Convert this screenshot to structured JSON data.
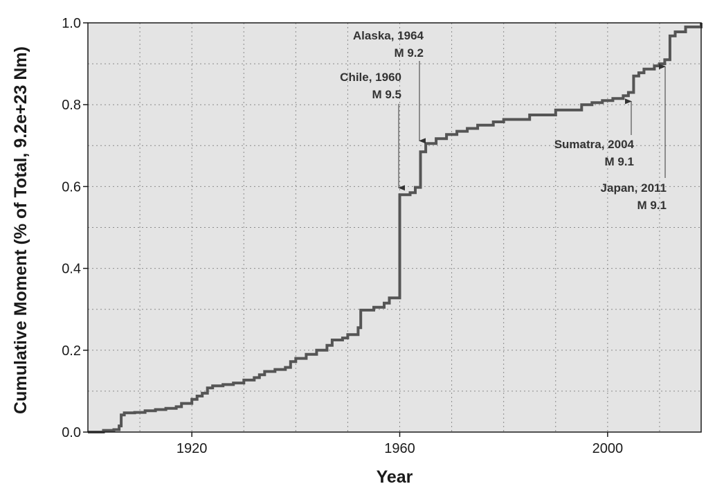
{
  "chart_data": {
    "type": "line",
    "step": true,
    "xlabel": "Year",
    "ylabel": "Cumulative Moment (% of Total, 9.2e+23 Nm)",
    "xlim": [
      1900,
      2018
    ],
    "ylim": [
      0,
      1.0
    ],
    "x_ticks": [
      1920,
      1960,
      2000
    ],
    "x_tick_labels": [
      "1920",
      "1960",
      "2000"
    ],
    "y_ticks": [
      0.0,
      0.2,
      0.4,
      0.6,
      0.8,
      1.0
    ],
    "y_tick_labels": [
      "0.0",
      "0.2",
      "0.4",
      "0.6",
      "0.8",
      "1.0"
    ],
    "grid": true,
    "colors": {
      "background": "#e4e4e4",
      "line": "#555555",
      "axes": "#1a1a1a"
    },
    "series": [
      {
        "x": [
          1900,
          1903,
          1905,
          1906,
          1906.4,
          1907,
          1909,
          1911,
          1913,
          1915,
          1917,
          1918,
          1920,
          1921,
          1922,
          1923,
          1924,
          1926,
          1928,
          1930,
          1932,
          1933,
          1934,
          1936,
          1938,
          1939,
          1940,
          1942,
          1944,
          1946,
          1947,
          1949,
          1950,
          1952,
          1952.5,
          1955,
          1957,
          1958,
          1960,
          1962,
          1963,
          1964,
          1965,
          1967,
          1969,
          1971,
          1973,
          1975,
          1978,
          1980,
          1985,
          1990,
          1995,
          1997,
          1999,
          2001,
          2003,
          2004,
          2005,
          2006,
          2007,
          2009,
          2010,
          2011,
          2012,
          2013,
          2015,
          2018
        ],
        "y": [
          0.0,
          0.004,
          0.006,
          0.015,
          0.042,
          0.047,
          0.048,
          0.052,
          0.055,
          0.058,
          0.062,
          0.07,
          0.08,
          0.088,
          0.095,
          0.108,
          0.113,
          0.116,
          0.12,
          0.127,
          0.133,
          0.14,
          0.148,
          0.153,
          0.158,
          0.172,
          0.18,
          0.19,
          0.2,
          0.212,
          0.225,
          0.23,
          0.238,
          0.255,
          0.298,
          0.305,
          0.315,
          0.328,
          0.58,
          0.585,
          0.598,
          0.685,
          0.705,
          0.717,
          0.727,
          0.735,
          0.742,
          0.75,
          0.758,
          0.764,
          0.775,
          0.787,
          0.8,
          0.805,
          0.81,
          0.815,
          0.822,
          0.83,
          0.87,
          0.878,
          0.887,
          0.895,
          0.9,
          0.91,
          0.968,
          0.978,
          0.99,
          1.0
        ]
      }
    ],
    "annotations": [
      {
        "line1": "Alaska, 1964",
        "line2": "M 9.2",
        "x": 1964,
        "y": 0.705
      },
      {
        "line1": "Chile, 1960",
        "line2": "M 9.5",
        "x": 1960,
        "y": 0.59
      },
      {
        "line1": "Sumatra, 2004",
        "line2": "M 9.1",
        "x": 2005,
        "y": 0.815
      },
      {
        "line1": "Japan, 2011",
        "line2": "M 9.1",
        "x": 2011,
        "y": 0.9
      }
    ]
  }
}
